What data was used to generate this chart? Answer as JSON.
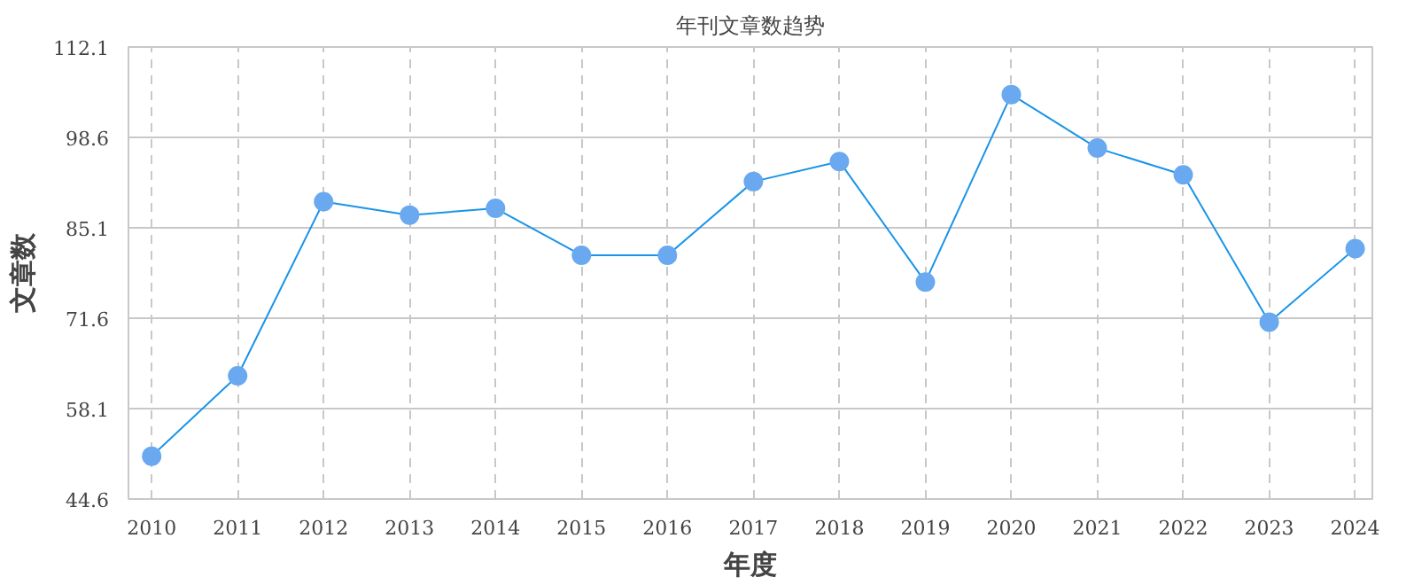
{
  "chart_data": {
    "type": "line",
    "title": "年刊文章数趋势",
    "xlabel": "年度",
    "ylabel": "文章数",
    "categories": [
      "2010",
      "2011",
      "2012",
      "2013",
      "2014",
      "2015",
      "2016",
      "2017",
      "2018",
      "2019",
      "2020",
      "2021",
      "2022",
      "2023",
      "2024"
    ],
    "series": [
      {
        "color": "#1a94e8",
        "values": [
          51,
          63,
          89,
          87,
          88,
          81,
          81,
          92,
          95,
          77,
          105,
          97,
          93,
          71,
          82
        ]
      }
    ],
    "ylim": [
      44.6,
      112.1
    ],
    "yticks": [
      44.6,
      58.1,
      71.6,
      85.1,
      98.6,
      112.1
    ],
    "grid": true,
    "marker": "circle",
    "line_style": "solid"
  }
}
